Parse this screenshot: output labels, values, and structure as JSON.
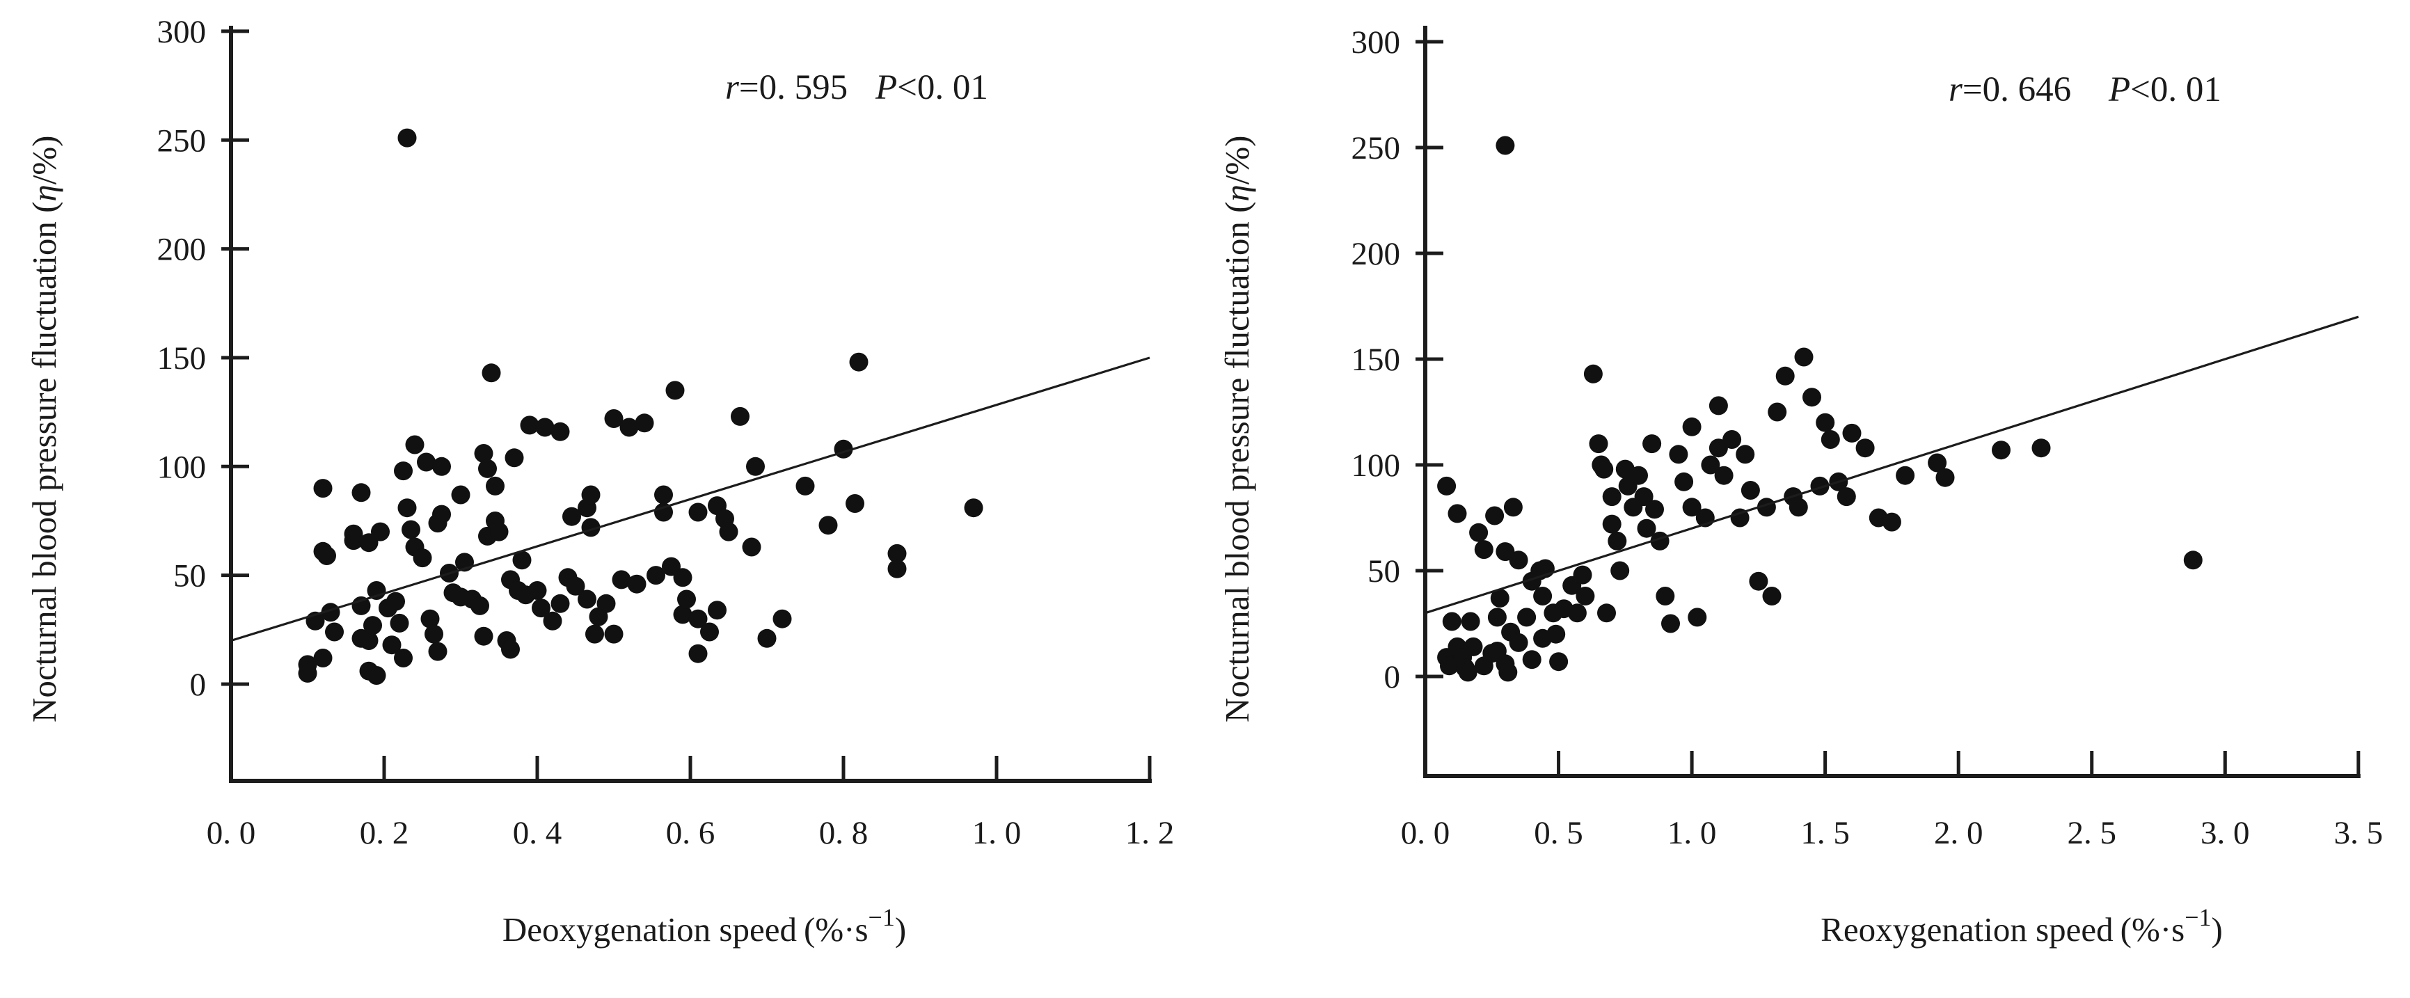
{
  "figure": {
    "background": "#ffffff",
    "ink_color": "#1c1c1c",
    "description_left": "Scatter plot of nocturnal blood pressure fluctuation vs deoxygenation speed with fitted regression line",
    "description_right": "Scatter plot of nocturnal blood pressure fluctuation vs reoxygenation speed with fitted regression line"
  },
  "chart_data": [
    {
      "type": "scatter",
      "title": "",
      "xlabel": "Deoxygenation speed (%·s⁻¹)",
      "xlabel_parts": {
        "text": "Deoxygenation speed",
        "unit_base": "(%·s",
        "unit_sup": "−1",
        "unit_end": ")"
      },
      "ylabel": "Nocturnal blood pressure fluctuation (η/%)",
      "ylabel_parts": {
        "text": "Nocturnal blood pressure fluctuation ",
        "unit_pre": "(",
        "unit_eta": "η",
        "unit_post": "/%)"
      },
      "annotation": {
        "r_var": "r",
        "r_rest": "=0. 595",
        "p_var": "P",
        "p_rest": "<0. 01"
      },
      "xlim": [
        0.0,
        1.2
      ],
      "ylim": [
        -45,
        300
      ],
      "grid": false,
      "legend": "none",
      "x_ticks": [
        0.0,
        0.2,
        0.4,
        0.6,
        0.8,
        1.0,
        1.2
      ],
      "x_tick_labels": [
        "0. 0",
        "0. 2",
        "0. 4",
        "0. 6",
        "0. 8",
        "1. 0",
        "1. 2"
      ],
      "y_ticks": [
        0,
        50,
        100,
        150,
        200,
        250,
        300
      ],
      "y_tick_labels": [
        "0",
        "50",
        "100",
        "150",
        "200",
        "250",
        "300"
      ],
      "trendline": {
        "x1": 0.0,
        "y1": 20,
        "x2": 1.2,
        "y2": 150
      },
      "points": [
        [
          0.1,
          9
        ],
        [
          0.1,
          5
        ],
        [
          0.11,
          29
        ],
        [
          0.12,
          90
        ],
        [
          0.12,
          61
        ],
        [
          0.12,
          12
        ],
        [
          0.125,
          59
        ],
        [
          0.13,
          33
        ],
        [
          0.135,
          24
        ],
        [
          0.16,
          66
        ],
        [
          0.16,
          69
        ],
        [
          0.17,
          36
        ],
        [
          0.17,
          21
        ],
        [
          0.17,
          88
        ],
        [
          0.18,
          20
        ],
        [
          0.18,
          6
        ],
        [
          0.18,
          65
        ],
        [
          0.185,
          27
        ],
        [
          0.19,
          4
        ],
        [
          0.19,
          43
        ],
        [
          0.195,
          70
        ],
        [
          0.205,
          35
        ],
        [
          0.21,
          18
        ],
        [
          0.215,
          38
        ],
        [
          0.22,
          28
        ],
        [
          0.225,
          98
        ],
        [
          0.225,
          12
        ],
        [
          0.23,
          251
        ],
        [
          0.23,
          81
        ],
        [
          0.235,
          71
        ],
        [
          0.24,
          110
        ],
        [
          0.24,
          63
        ],
        [
          0.25,
          58
        ],
        [
          0.255,
          102
        ],
        [
          0.26,
          30
        ],
        [
          0.265,
          23
        ],
        [
          0.27,
          15
        ],
        [
          0.27,
          74
        ],
        [
          0.275,
          78
        ],
        [
          0.275,
          100
        ],
        [
          0.285,
          51
        ],
        [
          0.29,
          42
        ],
        [
          0.3,
          87
        ],
        [
          0.3,
          40
        ],
        [
          0.305,
          56
        ],
        [
          0.315,
          39
        ],
        [
          0.325,
          36
        ],
        [
          0.33,
          22
        ],
        [
          0.33,
          106
        ],
        [
          0.335,
          68
        ],
        [
          0.335,
          99
        ],
        [
          0.34,
          143
        ],
        [
          0.345,
          91
        ],
        [
          0.345,
          75
        ],
        [
          0.35,
          70
        ],
        [
          0.36,
          20
        ],
        [
          0.365,
          48
        ],
        [
          0.365,
          16
        ],
        [
          0.37,
          104
        ],
        [
          0.375,
          43
        ],
        [
          0.38,
          57
        ],
        [
          0.385,
          41
        ],
        [
          0.39,
          119
        ],
        [
          0.4,
          43
        ],
        [
          0.405,
          35
        ],
        [
          0.41,
          118
        ],
        [
          0.42,
          29
        ],
        [
          0.43,
          116
        ],
        [
          0.43,
          37
        ],
        [
          0.44,
          49
        ],
        [
          0.445,
          77
        ],
        [
          0.45,
          45
        ],
        [
          0.465,
          39
        ],
        [
          0.465,
          81
        ],
        [
          0.47,
          72
        ],
        [
          0.47,
          87
        ],
        [
          0.475,
          23
        ],
        [
          0.48,
          31
        ],
        [
          0.49,
          37
        ],
        [
          0.5,
          23
        ],
        [
          0.5,
          122
        ],
        [
          0.51,
          48
        ],
        [
          0.52,
          118
        ],
        [
          0.53,
          46
        ],
        [
          0.54,
          120
        ],
        [
          0.555,
          50
        ],
        [
          0.565,
          87
        ],
        [
          0.565,
          79
        ],
        [
          0.575,
          54
        ],
        [
          0.58,
          135
        ],
        [
          0.59,
          32
        ],
        [
          0.59,
          49
        ],
        [
          0.595,
          39
        ],
        [
          0.61,
          14
        ],
        [
          0.61,
          79
        ],
        [
          0.61,
          30
        ],
        [
          0.625,
          24
        ],
        [
          0.635,
          82
        ],
        [
          0.635,
          34
        ],
        [
          0.645,
          76
        ],
        [
          0.65,
          70
        ],
        [
          0.665,
          123
        ],
        [
          0.68,
          63
        ],
        [
          0.685,
          100
        ],
        [
          0.7,
          21
        ],
        [
          0.72,
          30
        ],
        [
          0.75,
          91
        ],
        [
          0.78,
          73
        ],
        [
          0.8,
          108
        ],
        [
          0.815,
          83
        ],
        [
          0.82,
          148
        ],
        [
          0.87,
          60
        ],
        [
          0.87,
          53
        ],
        [
          0.97,
          81
        ]
      ]
    },
    {
      "type": "scatter",
      "title": "",
      "xlabel": "Reoxygenation speed (%·s⁻¹)",
      "xlabel_parts": {
        "text": "Reoxygenation speed",
        "unit_base": "(%·s",
        "unit_sup": "−1",
        "unit_end": ")"
      },
      "ylabel": "Nocturnal blood pressure fluctuation (η/%)",
      "ylabel_parts": {
        "text": "Nocturnal blood pressure fluctuation ",
        "unit_pre": "(",
        "unit_eta": "η",
        "unit_post": "/%)"
      },
      "annotation": {
        "r_var": "r",
        "r_rest": "=0. 646",
        "p_var": "P",
        "p_rest": "<0. 01"
      },
      "xlim": [
        0.0,
        3.5
      ],
      "ylim": [
        -50,
        300
      ],
      "grid": false,
      "legend": "none",
      "x_ticks": [
        0.0,
        0.5,
        1.0,
        1.5,
        2.0,
        2.5,
        3.0,
        3.5
      ],
      "x_tick_labels": [
        "0. 0",
        "0. 5",
        "1. 0",
        "1. 5",
        "2. 0",
        "2. 5",
        "3. 0",
        "3. 5"
      ],
      "y_ticks": [
        0,
        50,
        100,
        150,
        200,
        250,
        300
      ],
      "y_tick_labels": [
        "0",
        "50",
        "100",
        "150",
        "200",
        "250",
        "300"
      ],
      "trendline": {
        "x1": 0.0,
        "y1": 30,
        "x2": 3.5,
        "y2": 170
      },
      "points": [
        [
          0.08,
          90
        ],
        [
          0.12,
          77
        ],
        [
          0.26,
          76
        ],
        [
          0.3,
          251
        ],
        [
          0.08,
          9
        ],
        [
          0.09,
          5
        ],
        [
          0.1,
          26
        ],
        [
          0.12,
          14
        ],
        [
          0.14,
          9
        ],
        [
          0.15,
          4
        ],
        [
          0.16,
          2
        ],
        [
          0.17,
          26
        ],
        [
          0.18,
          14
        ],
        [
          0.2,
          68
        ],
        [
          0.22,
          60
        ],
        [
          0.22,
          5
        ],
        [
          0.25,
          11
        ],
        [
          0.27,
          12
        ],
        [
          0.27,
          28
        ],
        [
          0.28,
          37
        ],
        [
          0.3,
          59
        ],
        [
          0.3,
          6
        ],
        [
          0.31,
          2
        ],
        [
          0.32,
          21
        ],
        [
          0.33,
          80
        ],
        [
          0.35,
          55
        ],
        [
          0.35,
          16
        ],
        [
          0.38,
          28
        ],
        [
          0.4,
          45
        ],
        [
          0.4,
          8
        ],
        [
          0.43,
          50
        ],
        [
          0.44,
          38
        ],
        [
          0.44,
          18
        ],
        [
          0.45,
          51
        ],
        [
          0.48,
          30
        ],
        [
          0.49,
          20
        ],
        [
          0.5,
          7
        ],
        [
          0.52,
          32
        ],
        [
          0.55,
          43
        ],
        [
          0.57,
          30
        ],
        [
          0.59,
          48
        ],
        [
          0.6,
          38
        ],
        [
          0.63,
          143
        ],
        [
          0.65,
          110
        ],
        [
          0.66,
          100
        ],
        [
          0.67,
          98
        ],
        [
          0.68,
          30
        ],
        [
          0.7,
          85
        ],
        [
          0.7,
          72
        ],
        [
          0.72,
          64
        ],
        [
          0.73,
          50
        ],
        [
          0.75,
          98
        ],
        [
          0.76,
          90
        ],
        [
          0.78,
          80
        ],
        [
          0.8,
          95
        ],
        [
          0.82,
          85
        ],
        [
          0.83,
          70
        ],
        [
          0.85,
          110
        ],
        [
          0.86,
          79
        ],
        [
          0.88,
          64
        ],
        [
          0.9,
          38
        ],
        [
          0.92,
          25
        ],
        [
          0.95,
          105
        ],
        [
          0.97,
          92
        ],
        [
          1.0,
          118
        ],
        [
          1.0,
          80
        ],
        [
          1.02,
          28
        ],
        [
          1.05,
          75
        ],
        [
          1.07,
          100
        ],
        [
          1.1,
          128
        ],
        [
          1.1,
          108
        ],
        [
          1.12,
          95
        ],
        [
          1.15,
          112
        ],
        [
          1.18,
          75
        ],
        [
          1.2,
          105
        ],
        [
          1.22,
          88
        ],
        [
          1.25,
          45
        ],
        [
          1.28,
          80
        ],
        [
          1.3,
          38
        ],
        [
          1.32,
          125
        ],
        [
          1.35,
          142
        ],
        [
          1.38,
          85
        ],
        [
          1.4,
          80
        ],
        [
          1.42,
          151
        ],
        [
          1.45,
          132
        ],
        [
          1.48,
          90
        ],
        [
          1.5,
          120
        ],
        [
          1.52,
          112
        ],
        [
          1.55,
          92
        ],
        [
          1.58,
          85
        ],
        [
          1.6,
          115
        ],
        [
          1.65,
          108
        ],
        [
          1.7,
          75
        ],
        [
          1.75,
          73
        ],
        [
          1.8,
          95
        ],
        [
          1.92,
          101
        ],
        [
          1.95,
          94
        ],
        [
          2.16,
          107
        ],
        [
          2.31,
          108
        ],
        [
          2.88,
          55
        ]
      ]
    }
  ]
}
